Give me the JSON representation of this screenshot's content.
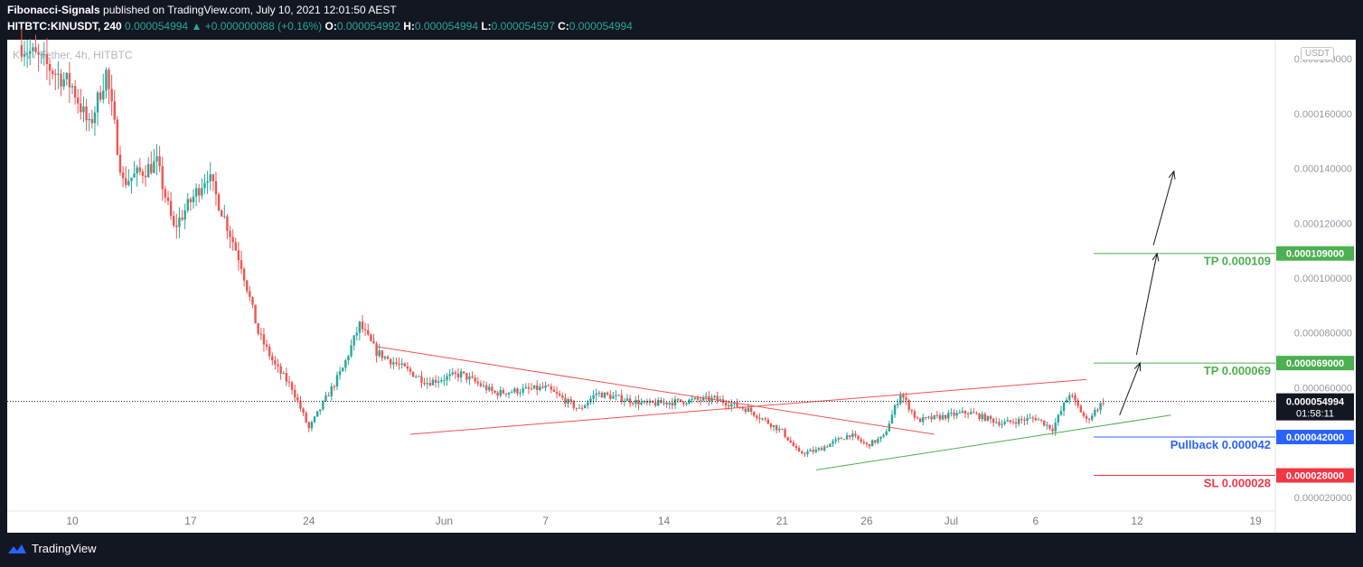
{
  "header": {
    "line1_author": "Fibonacci-Signals",
    "line1_rest": " published on TradingView.com, July 10, 2021 12:01:50 AEST",
    "symbol": "HITBTC:KINUSDT, 240",
    "last": "0.000054994",
    "change": "+0.000000088 (+0.16%)",
    "o_label": "O:",
    "o_value": "0.000054992",
    "h_label": "H:",
    "h_value": "0.000054994",
    "l_label": "L:",
    "l_value": "0.000054597",
    "c_label": "C:",
    "c_value": "0.000054994"
  },
  "watermark": "KIN / Tether, 4h, HITBTC",
  "currency_badge": "USDT",
  "footer": {
    "brand": "TradingView"
  },
  "colors": {
    "up": "#26a69a",
    "down": "#ef5350",
    "tp": "#4caf50",
    "pullback": "#2962ff",
    "sl": "#f23645",
    "trend_red": "#ef5350",
    "trend_green": "#4caf50"
  },
  "chart_data": {
    "type": "candlestick",
    "title": "KIN / Tether, 4h, HITBTC",
    "ylim": [
      1.5e-05,
      0.000187
    ],
    "y_ticks": [
      "0.000180000",
      "0.000160000",
      "0.000140000",
      "0.000120000",
      "0.000100000",
      "0.000080000",
      "0.000060000",
      "0.000020000"
    ],
    "y_tick_values": [
      0.00018,
      0.00016,
      0.00014,
      0.00012,
      0.0001,
      8e-05,
      6e-05,
      2e-05
    ],
    "x_ticks": [
      "10",
      "17",
      "24",
      "Jun",
      "7",
      "14",
      "21",
      "26",
      "Jul",
      "6",
      "12",
      "19"
    ],
    "x_tick_dates": [
      "2021-05-10",
      "2021-05-17",
      "2021-05-24",
      "2021-06-01",
      "2021-06-07",
      "2021-06-14",
      "2021-06-21",
      "2021-06-26",
      "2021-07-01",
      "2021-07-06",
      "2021-07-12",
      "2021-07-19"
    ],
    "current_price": {
      "label": "0.000054994",
      "value": 5.4994e-05,
      "countdown": "01:58:11"
    },
    "levels": [
      {
        "name": "TP 0.000109",
        "value": 0.000109,
        "axis_label": "0.000109000",
        "color": "#4caf50"
      },
      {
        "name": "TP 0.000069",
        "value": 6.9e-05,
        "axis_label": "0.000069000",
        "color": "#4caf50"
      },
      {
        "name": "Pullback 0.000042",
        "value": 4.2e-05,
        "axis_label": "0.000042000",
        "color": "#2962ff"
      },
      {
        "name": "SL 0.000028",
        "value": 2.8e-05,
        "axis_label": "0.000028000",
        "color": "#f23645"
      }
    ],
    "anchor_points": [
      [
        "2021-05-07",
        0.000185
      ],
      [
        "2021-05-10",
        0.00017
      ],
      [
        "2021-05-11",
        0.000155
      ],
      [
        "2021-05-12",
        0.000175
      ],
      [
        "2021-05-13",
        0.000135
      ],
      [
        "2021-05-15",
        0.000142
      ],
      [
        "2021-05-16",
        0.000118
      ],
      [
        "2021-05-18",
        0.000138
      ],
      [
        "2021-05-19",
        0.000122
      ],
      [
        "2021-05-20",
        0.000105
      ],
      [
        "2021-05-21",
        8e-05
      ],
      [
        "2021-05-22",
        6.8e-05
      ],
      [
        "2021-05-23",
        6e-05
      ],
      [
        "2021-05-24",
        4.5e-05
      ],
      [
        "2021-05-26",
        6.7e-05
      ],
      [
        "2021-05-27",
        8.3e-05
      ],
      [
        "2021-05-28",
        7.3e-05
      ],
      [
        "2021-05-31",
        6.2e-05
      ],
      [
        "2021-06-02",
        6.5e-05
      ],
      [
        "2021-06-04",
        5.8e-05
      ],
      [
        "2021-06-07",
        6e-05
      ],
      [
        "2021-06-09",
        5.2e-05
      ],
      [
        "2021-06-10",
        5.8e-05
      ],
      [
        "2021-06-13",
        5.4e-05
      ],
      [
        "2021-06-17",
        5.6e-05
      ],
      [
        "2021-06-19",
        5.2e-05
      ],
      [
        "2021-06-21",
        4.4e-05
      ],
      [
        "2021-06-22",
        3.6e-05
      ],
      [
        "2021-06-23",
        3.7e-05
      ],
      [
        "2021-06-25",
        4.3e-05
      ],
      [
        "2021-06-26",
        3.9e-05
      ],
      [
        "2021-06-27",
        4.2e-05
      ],
      [
        "2021-06-28",
        5.8e-05
      ],
      [
        "2021-06-29",
        4.8e-05
      ],
      [
        "2021-07-02",
        5.1e-05
      ],
      [
        "2021-07-04",
        4.7e-05
      ],
      [
        "2021-07-06",
        4.9e-05
      ],
      [
        "2021-07-07",
        4.5e-05
      ],
      [
        "2021-07-08",
        5.8e-05
      ],
      [
        "2021-07-09",
        4.8e-05
      ],
      [
        "2021-07-10",
        5.5e-05
      ]
    ],
    "trendlines": [
      {
        "color": "#ef5350",
        "from": [
          "2021-05-28",
          7.5e-05
        ],
        "to": [
          "2021-06-30",
          4.3e-05
        ]
      },
      {
        "color": "#ef5350",
        "from": [
          "2021-05-30",
          4.3e-05
        ],
        "to": [
          "2021-07-09",
          6.3e-05
        ]
      },
      {
        "color": "#4caf50",
        "from": [
          "2021-06-23",
          3e-05
        ],
        "to": [
          "2021-07-14",
          5e-05
        ]
      }
    ],
    "projection_arrows": [
      {
        "from": [
          "2021-07-10",
          5e-05
        ],
        "to": [
          "2021-07-11",
          6.9e-05
        ]
      },
      {
        "from": [
          "2021-07-11",
          7.2e-05
        ],
        "to": [
          "2021-07-12",
          0.000109
        ]
      },
      {
        "from": [
          "2021-07-12",
          0.000112
        ],
        "to": [
          "2021-07-13",
          0.000139
        ]
      }
    ]
  }
}
